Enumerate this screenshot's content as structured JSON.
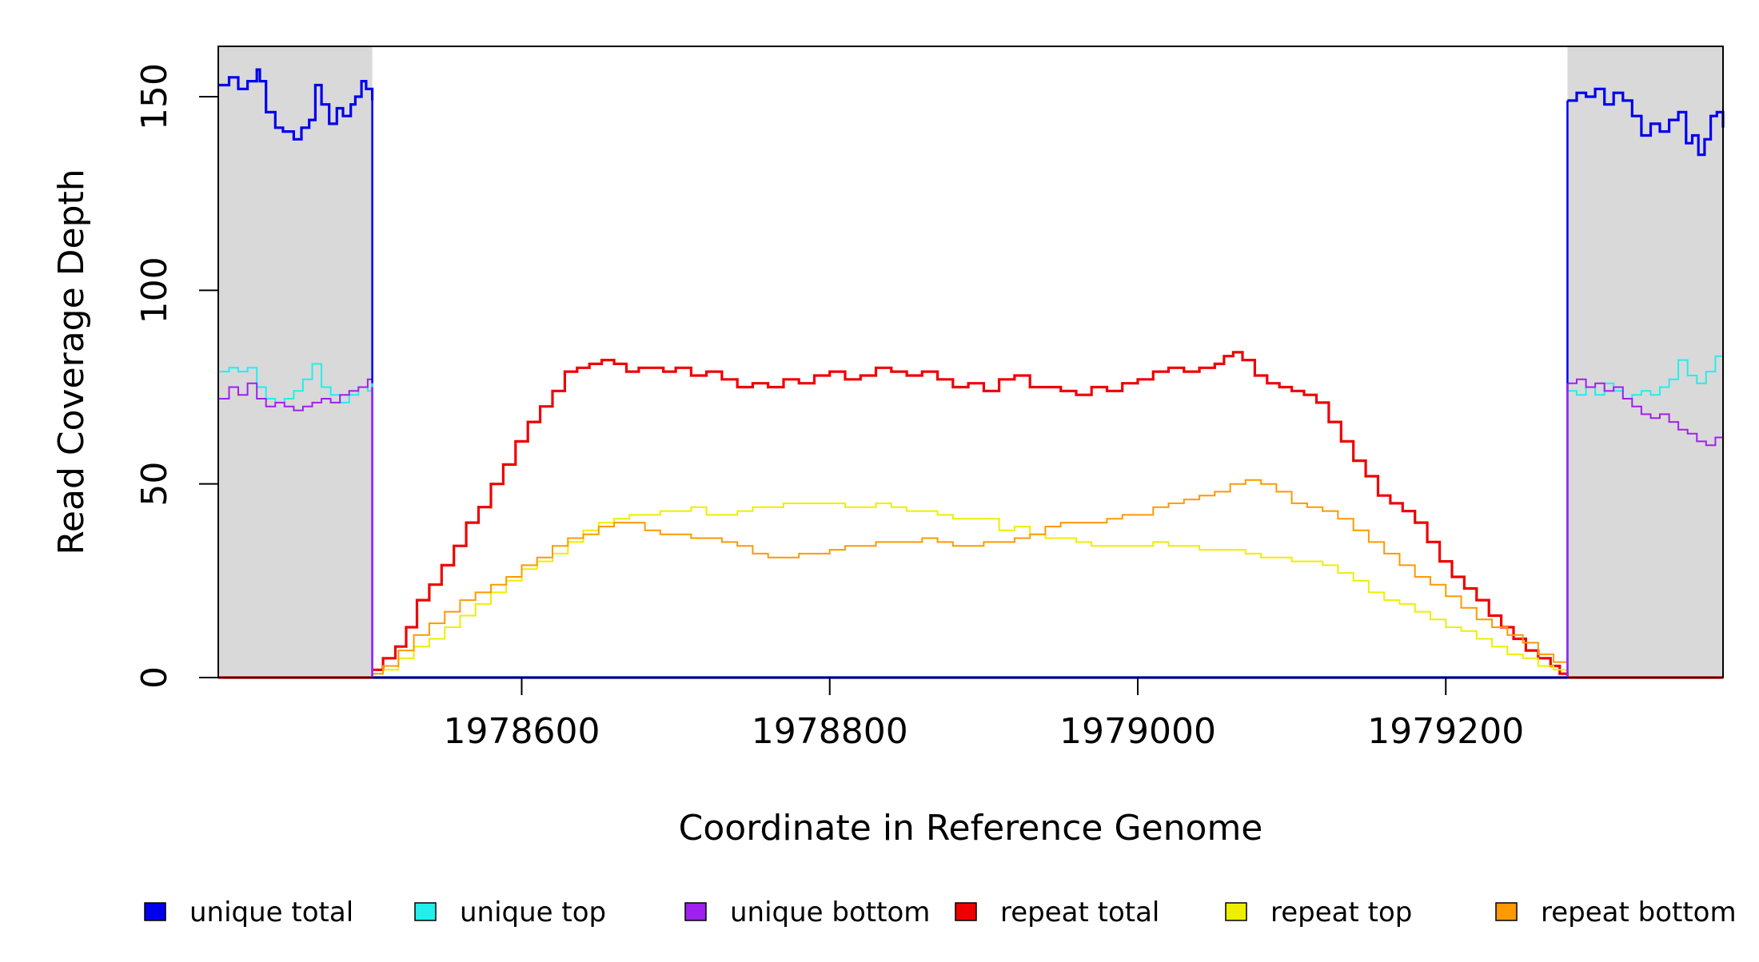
{
  "chart_data": {
    "type": "line",
    "title": "",
    "xlabel": "Coordinate in Reference Genome",
    "ylabel": "Read Coverage Depth",
    "xlim": [
      1978403,
      1979380
    ],
    "ylim": [
      0,
      163
    ],
    "x_ticks": [
      1978600,
      1978800,
      1979000,
      1979200
    ],
    "x_tick_labels": [
      "1978600",
      "1978800",
      "1979000",
      "1979200"
    ],
    "y_ticks": [
      0,
      50,
      100,
      150
    ],
    "y_tick_labels": [
      "0",
      "50",
      "100",
      "150"
    ],
    "grid": false,
    "legend_position": "bottom",
    "shaded_regions": [
      {
        "x": [
          1978403,
          1978503
        ],
        "color": "#d9d9d9"
      },
      {
        "x": [
          1979279,
          1979380
        ],
        "color": "#d9d9d9"
      }
    ],
    "series": [
      {
        "name": "unique total",
        "color": "#0000ee",
        "step": true,
        "segments": [
          {
            "x": [
              1978403,
              1978410,
              1978416,
              1978422,
              1978428,
              1978430,
              1978434,
              1978440,
              1978445,
              1978452,
              1978457,
              1978462,
              1978466,
              1978470,
              1978475,
              1978480,
              1978484,
              1978489,
              1978492,
              1978496,
              1978499,
              1978503
            ],
            "y": [
              153,
              155,
              152,
              154,
              157,
              154,
              146,
              142,
              141,
              139,
              142,
              144,
              153,
              148,
              143,
              147,
              145,
              148,
              150,
              154,
              152,
              149
            ]
          },
          {
            "x": [
              1978503,
              1979279
            ],
            "y": [
              0,
              0
            ]
          },
          {
            "x": [
              1979279,
              1979285,
              1979291,
              1979297,
              1979303,
              1979309,
              1979315,
              1979321,
              1979327,
              1979333,
              1979339,
              1979345,
              1979351,
              1979356,
              1979360,
              1979364,
              1979368,
              1979372,
              1979376,
              1979380
            ],
            "y": [
              149,
              151,
              150,
              152,
              148,
              151,
              149,
              145,
              140,
              143,
              141,
              144,
              146,
              138,
              140,
              135,
              139,
              145,
              146,
              142
            ]
          }
        ]
      },
      {
        "name": "unique top",
        "color": "#22eeee",
        "step": true,
        "segments": [
          {
            "x": [
              1978403,
              1978410,
              1978416,
              1978422,
              1978428,
              1978434,
              1978440,
              1978446,
              1978452,
              1978458,
              1978464,
              1978470,
              1978476,
              1978482,
              1978488,
              1978494,
              1978500,
              1978503
            ],
            "y": [
              79,
              80,
              79,
              80,
              75,
              72,
              71,
              72,
              74,
              77,
              81,
              75,
              73,
              71,
              73,
              75,
              74,
              76
            ]
          },
          {
            "x": [
              1978503,
              1979279
            ],
            "y": [
              0,
              0
            ]
          },
          {
            "x": [
              1979279,
              1979285,
              1979291,
              1979297,
              1979303,
              1979309,
              1979315,
              1979321,
              1979327,
              1979333,
              1979339,
              1979345,
              1979351,
              1979357,
              1979363,
              1979369,
              1979375,
              1979380
            ],
            "y": [
              74,
              73,
              75,
              73,
              76,
              74,
              72,
              73,
              74,
              73,
              75,
              77,
              82,
              78,
              76,
              79,
              83,
              80
            ]
          }
        ]
      },
      {
        "name": "unique bottom",
        "color": "#a020f0",
        "step": true,
        "segments": [
          {
            "x": [
              1978403,
              1978410,
              1978416,
              1978422,
              1978428,
              1978434,
              1978440,
              1978446,
              1978452,
              1978458,
              1978464,
              1978470,
              1978476,
              1978482,
              1978488,
              1978494,
              1978500,
              1978503
            ],
            "y": [
              72,
              75,
              73,
              76,
              72,
              70,
              71,
              70,
              69,
              70,
              71,
              72,
              71,
              73,
              74,
              75,
              77,
              75
            ]
          },
          {
            "x": [
              1978503,
              1979279
            ],
            "y": [
              0,
              0
            ]
          },
          {
            "x": [
              1979279,
              1979285,
              1979291,
              1979297,
              1979303,
              1979309,
              1979315,
              1979321,
              1979327,
              1979333,
              1979339,
              1979345,
              1979351,
              1979357,
              1979363,
              1979369,
              1979375,
              1979380
            ],
            "y": [
              76,
              77,
              75,
              76,
              74,
              75,
              72,
              70,
              68,
              67,
              68,
              66,
              64,
              63,
              61,
              60,
              62,
              64
            ]
          }
        ]
      },
      {
        "name": "repeat total",
        "color": "#ee0000",
        "step": true,
        "segments": [
          {
            "x": [
              1978403,
              1978503
            ],
            "y": [
              0,
              0
            ]
          },
          {
            "x": [
              1978503,
              1978510,
              1978518,
              1978525,
              1978532,
              1978540,
              1978548,
              1978556,
              1978564,
              1978572,
              1978580,
              1978588,
              1978596,
              1978604,
              1978612,
              1978620,
              1978628,
              1978636,
              1978644,
              1978652,
              1978660,
              1978668,
              1978676,
              1978684,
              1978692,
              1978700,
              1978710,
              1978720,
              1978730,
              1978740,
              1978750,
              1978760,
              1978770,
              1978780,
              1978790,
              1978800,
              1978810,
              1978820,
              1978830,
              1978840,
              1978850,
              1978860,
              1978870,
              1978880,
              1978890,
              1978900,
              1978910,
              1978920,
              1978930,
              1978940,
              1978950,
              1978960,
              1978970,
              1978980,
              1978990,
              1979000,
              1979010,
              1979020,
              1979030,
              1979040,
              1979050,
              1979056,
              1979062,
              1979068,
              1979076,
              1979084,
              1979092,
              1979100,
              1979108,
              1979116,
              1979124,
              1979132,
              1979140,
              1979148,
              1979156,
              1979164,
              1979172,
              1979180,
              1979188,
              1979196,
              1979204,
              1979212,
              1979220,
              1979228,
              1979236,
              1979244,
              1979252,
              1979260,
              1979268,
              1979274,
              1979279
            ],
            "y": [
              2,
              5,
              8,
              13,
              20,
              24,
              29,
              34,
              40,
              44,
              50,
              55,
              61,
              66,
              70,
              74,
              79,
              80,
              81,
              82,
              81,
              79,
              80,
              80,
              79,
              80,
              78,
              79,
              77,
              75,
              76,
              75,
              77,
              76,
              78,
              79,
              77,
              78,
              80,
              79,
              78,
              79,
              77,
              75,
              76,
              74,
              77,
              78,
              75,
              75,
              74,
              73,
              75,
              74,
              76,
              77,
              79,
              80,
              79,
              80,
              81,
              83,
              84,
              82,
              78,
              76,
              75,
              74,
              73,
              71,
              66,
              61,
              56,
              52,
              47,
              45,
              43,
              40,
              35,
              30,
              26,
              23,
              20,
              16,
              13,
              10,
              7,
              5,
              3,
              1,
              0
            ]
          },
          {
            "x": [
              1979279,
              1979380
            ],
            "y": [
              0,
              0
            ]
          }
        ]
      },
      {
        "name": "repeat top",
        "color": "#eeee00",
        "step": true,
        "segments": [
          {
            "x": [
              1978403,
              1978503
            ],
            "y": [
              0,
              0
            ]
          },
          {
            "x": [
              1978503,
              1978510,
              1978520,
              1978530,
              1978540,
              1978550,
              1978560,
              1978570,
              1978580,
              1978590,
              1978600,
              1978610,
              1978620,
              1978630,
              1978640,
              1978650,
              1978660,
              1978670,
              1978680,
              1978690,
              1978700,
              1978710,
              1978720,
              1978730,
              1978740,
              1978750,
              1978760,
              1978770,
              1978780,
              1978790,
              1978800,
              1978810,
              1978820,
              1978830,
              1978840,
              1978850,
              1978860,
              1978870,
              1978880,
              1978890,
              1978900,
              1978910,
              1978920,
              1978930,
              1978940,
              1978950,
              1978960,
              1978970,
              1978980,
              1978990,
              1979000,
              1979010,
              1979020,
              1979030,
              1979040,
              1979050,
              1979060,
              1979070,
              1979080,
              1979090,
              1979100,
              1979110,
              1979120,
              1979130,
              1979140,
              1979150,
              1979160,
              1979170,
              1979180,
              1979190,
              1979200,
              1979210,
              1979220,
              1979230,
              1979240,
              1979250,
              1979260,
              1979270,
              1979279
            ],
            "y": [
              1,
              2,
              5,
              8,
              10,
              13,
              16,
              19,
              22,
              25,
              28,
              30,
              32,
              35,
              38,
              40,
              41,
              42,
              42,
              43,
              43,
              44,
              42,
              42,
              43,
              44,
              44,
              45,
              45,
              45,
              45,
              44,
              44,
              45,
              44,
              43,
              43,
              42,
              41,
              41,
              41,
              38,
              39,
              37,
              36,
              36,
              35,
              34,
              34,
              34,
              34,
              35,
              34,
              34,
              33,
              33,
              33,
              32,
              31,
              31,
              30,
              30,
              29,
              27,
              25,
              22,
              20,
              19,
              17,
              15,
              13,
              12,
              10,
              8,
              6,
              5,
              3,
              2,
              0
            ]
          },
          {
            "x": [
              1979279,
              1979380
            ],
            "y": [
              0,
              0
            ]
          }
        ]
      },
      {
        "name": "repeat bottom",
        "color": "#ff9900",
        "step": true,
        "segments": [
          {
            "x": [
              1978403,
              1978503
            ],
            "y": [
              0,
              0
            ]
          },
          {
            "x": [
              1978503,
              1978510,
              1978520,
              1978530,
              1978540,
              1978550,
              1978560,
              1978570,
              1978580,
              1978590,
              1978600,
              1978610,
              1978620,
              1978630,
              1978640,
              1978650,
              1978660,
              1978670,
              1978680,
              1978690,
              1978700,
              1978710,
              1978720,
              1978730,
              1978740,
              1978750,
              1978760,
              1978770,
              1978780,
              1978790,
              1978800,
              1978810,
              1978820,
              1978830,
              1978840,
              1978850,
              1978860,
              1978870,
              1978880,
              1978890,
              1978900,
              1978910,
              1978920,
              1978930,
              1978940,
              1978950,
              1978960,
              1978970,
              1978980,
              1978990,
              1979000,
              1979010,
              1979020,
              1979030,
              1979040,
              1979050,
              1979060,
              1979070,
              1979080,
              1979090,
              1979100,
              1979110,
              1979120,
              1979130,
              1979140,
              1979150,
              1979160,
              1979170,
              1979180,
              1979190,
              1979200,
              1979210,
              1979220,
              1979230,
              1979240,
              1979250,
              1979260,
              1979270,
              1979279
            ],
            "y": [
              1,
              3,
              7,
              11,
              14,
              17,
              20,
              22,
              24,
              26,
              29,
              31,
              34,
              36,
              37,
              39,
              40,
              40,
              38,
              37,
              37,
              36,
              36,
              35,
              34,
              32,
              31,
              31,
              32,
              32,
              33,
              34,
              34,
              35,
              35,
              35,
              36,
              35,
              34,
              34,
              35,
              35,
              36,
              37,
              39,
              40,
              40,
              40,
              41,
              42,
              42,
              44,
              45,
              46,
              47,
              48,
              50,
              51,
              50,
              48,
              45,
              44,
              43,
              41,
              38,
              35,
              32,
              29,
              26,
              24,
              21,
              18,
              15,
              13,
              11,
              9,
              6,
              4,
              0
            ]
          },
          {
            "x": [
              1979279,
              1979380
            ],
            "y": [
              0,
              0
            ]
          }
        ]
      }
    ]
  },
  "legend": [
    {
      "label": "unique total",
      "color": "#0000ee"
    },
    {
      "label": "unique top",
      "color": "#22eeee"
    },
    {
      "label": "unique bottom",
      "color": "#a020f0"
    },
    {
      "label": "repeat total",
      "color": "#ee0000"
    },
    {
      "label": "repeat top",
      "color": "#eeee00"
    },
    {
      "label": "repeat bottom",
      "color": "#ff9900"
    }
  ]
}
